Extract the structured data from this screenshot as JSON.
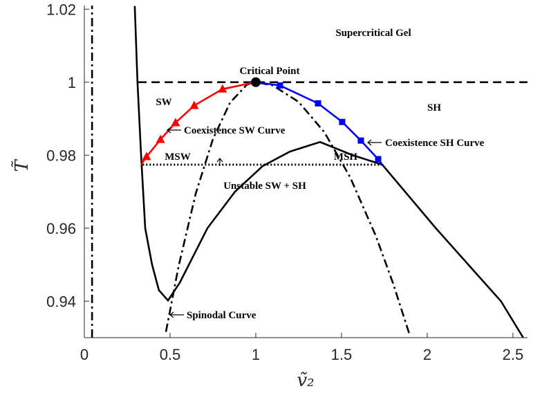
{
  "chart_data": {
    "type": "line",
    "xlabel": "ṽ₂",
    "ylabel": "T̃",
    "xlim": [
      0,
      2.585
    ],
    "ylim": [
      0.93,
      1.021
    ],
    "xticks": [
      0,
      0.5,
      1,
      1.5,
      2,
      2.5
    ],
    "yticks": [
      0.94,
      0.96,
      0.98,
      1,
      1.02
    ],
    "grid": false,
    "series": [
      {
        "style": "solid",
        "color": "#000000",
        "x": [
          0.294,
          0.31,
          0.331,
          0.355,
          0.395,
          0.435,
          0.488,
          0.556,
          0.718,
          0.879,
          1.04,
          1.2,
          1.375,
          1.565,
          1.738,
          2.05,
          2.43,
          2.56
        ],
        "values": [
          1.0209,
          1.0,
          0.98,
          0.96,
          0.95,
          0.943,
          0.9402,
          0.945,
          0.96,
          0.97,
          0.977,
          0.981,
          0.9836,
          0.98,
          0.9774,
          0.96,
          0.94,
          0.93
        ]
      },
      {
        "style": "dashdot",
        "color": "#000000",
        "x": [
          0.476,
          0.55,
          0.65,
          0.75,
          0.85,
          0.95,
          1,
          1.1,
          1.25,
          1.4,
          1.55,
          1.7,
          1.8,
          1.9
        ],
        "values": [
          0.9316,
          0.9496,
          0.9695,
          0.9844,
          0.9944,
          0.9994,
          1,
          0.9991,
          0.9946,
          0.9863,
          0.974,
          0.9579,
          0.945,
          0.9304
        ]
      },
      {
        "style": "dashdot",
        "color": "#000000",
        "x": [
          0.045,
          0.045
        ],
        "values": [
          0.93,
          1.021
        ]
      },
      {
        "style": "dashed",
        "color": "#000000",
        "x": [
          0.315,
          2.585
        ],
        "values": [
          1,
          1
        ]
      },
      {
        "style": "dotted",
        "color": "#000000",
        "x": [
          0.34,
          1.74
        ],
        "values": [
          0.9774,
          0.9774
        ]
      },
      {
        "style": "solid",
        "color": "#ff0000",
        "x": [
          0.331,
          0.363,
          0.444,
          0.532,
          0.641,
          0.806,
          1
        ],
        "values": [
          0.9774,
          0.9796,
          0.9843,
          0.9889,
          0.9936,
          0.9981,
          1
        ]
      },
      {
        "style": "solid",
        "color": "#0000ff",
        "x": [
          1,
          1.141,
          1.363,
          1.504,
          1.613,
          1.714,
          1.738
        ],
        "values": [
          1,
          0.9991,
          0.9942,
          0.9891,
          0.984,
          0.9789,
          0.9774
        ]
      },
      {
        "style": "triangle",
        "color": "#ff0000",
        "x": [
          0.363,
          0.444,
          0.532,
          0.641,
          0.806
        ],
        "values": [
          0.9796,
          0.9843,
          0.9889,
          0.9936,
          0.9981
        ]
      },
      {
        "style": "square",
        "color": "#0000ff",
        "x": [
          1.141,
          1.363,
          1.504,
          1.613,
          1.714
        ],
        "values": [
          0.9991,
          0.9942,
          0.9891,
          0.984,
          0.9789
        ]
      },
      {
        "style": "circle",
        "color": "#000000",
        "x": [
          1
        ],
        "values": [
          1
        ]
      }
    ],
    "annotations": [
      "Supercritical Gel",
      "Critical Point",
      "SW",
      "SH",
      "Coexistence SW Curve",
      "Coexistence SH Curve",
      "MSW",
      "MSH",
      "Unstable SW + SH",
      "Spinodal Curve"
    ]
  }
}
